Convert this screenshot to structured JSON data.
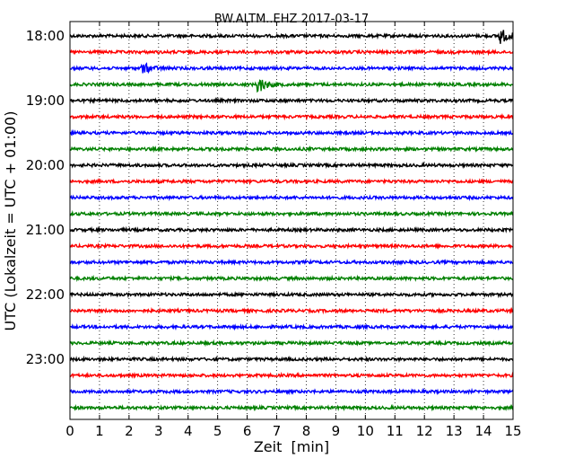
{
  "chart_data": {
    "type": "line",
    "title": "BW.ALTM..EHZ 2017-03-17",
    "xlabel": "Zeit  [min]",
    "ylabel": "UTC (Lokalzeit = UTC + 01:00)",
    "xlim": [
      0,
      15
    ],
    "x_ticks": [
      0,
      1,
      2,
      3,
      4,
      5,
      6,
      7,
      8,
      9,
      10,
      11,
      12,
      13,
      14,
      15
    ],
    "x_tick_labels": [
      "0",
      "1",
      "2",
      "3",
      "4",
      "5",
      "6",
      "7",
      "8",
      "9",
      "10",
      "11",
      "12",
      "13",
      "14",
      "15"
    ],
    "y_tick_labels": [
      "18:00",
      "19:00",
      "20:00",
      "21:00",
      "22:00",
      "23:00"
    ],
    "grid": "vertical dotted at each minute",
    "trace_start_hour": 18,
    "traces_per_hour": 4,
    "trace_count": 24,
    "trace_colors": [
      "#000000",
      "#ff0000",
      "#0000ff",
      "#008000"
    ],
    "series": [
      {
        "start": "18:00",
        "color": "black",
        "events": [
          {
            "x": 14.55,
            "amplitude": 0.5
          }
        ]
      },
      {
        "start": "18:15",
        "color": "red",
        "events": []
      },
      {
        "start": "18:30",
        "color": "blue",
        "events": [
          {
            "x": 2.45,
            "amplitude": 0.35
          }
        ]
      },
      {
        "start": "18:45",
        "color": "green",
        "events": [
          {
            "x": 6.35,
            "amplitude": 0.55
          }
        ]
      },
      {
        "start": "19:00",
        "color": "black",
        "events": []
      },
      {
        "start": "19:15",
        "color": "red",
        "events": []
      },
      {
        "start": "19:30",
        "color": "blue",
        "events": []
      },
      {
        "start": "19:45",
        "color": "green",
        "events": []
      },
      {
        "start": "20:00",
        "color": "black",
        "events": []
      },
      {
        "start": "20:15",
        "color": "red",
        "events": []
      },
      {
        "start": "20:30",
        "color": "blue",
        "events": []
      },
      {
        "start": "20:45",
        "color": "green",
        "events": []
      },
      {
        "start": "21:00",
        "color": "black",
        "events": []
      },
      {
        "start": "21:15",
        "color": "red",
        "events": []
      },
      {
        "start": "21:30",
        "color": "blue",
        "events": []
      },
      {
        "start": "21:45",
        "color": "green",
        "events": []
      },
      {
        "start": "22:00",
        "color": "black",
        "events": []
      },
      {
        "start": "22:15",
        "color": "red",
        "events": []
      },
      {
        "start": "22:30",
        "color": "blue",
        "events": []
      },
      {
        "start": "22:45",
        "color": "green",
        "events": []
      },
      {
        "start": "23:00",
        "color": "black",
        "events": []
      },
      {
        "start": "23:15",
        "color": "red",
        "events": []
      },
      {
        "start": "23:30",
        "color": "blue",
        "events": []
      },
      {
        "start": "23:45",
        "color": "green",
        "events": []
      }
    ]
  }
}
